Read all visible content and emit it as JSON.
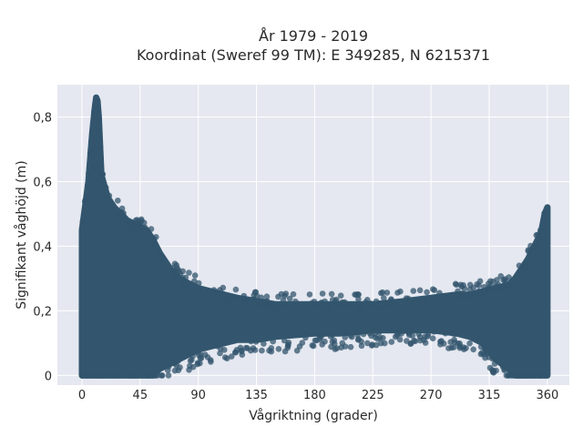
{
  "chart_data": {
    "type": "scatter",
    "title_line1": "År 1979 - 2019",
    "title_line2": "Koordinat (Sweref 99 TM): E 349285, N 6215371",
    "xlabel": "Vågriktning (grader)",
    "ylabel": "Signifikant våghöjd (m)",
    "xlim": [
      -19,
      377
    ],
    "ylim": [
      -0.03,
      0.9
    ],
    "xticks": [
      0,
      45,
      90,
      135,
      180,
      225,
      270,
      315,
      360
    ],
    "yticks": [
      0,
      0.2,
      0.4,
      0.6,
      0.8
    ],
    "ytick_labels": [
      "0",
      "0,2",
      "0,4",
      "0,6",
      "0,8"
    ],
    "grid": true,
    "marker_color": "#33566e",
    "plot_bg": "#e5e8f0",
    "density_envelope": {
      "x": [
        0,
        5,
        8,
        10,
        11,
        12,
        13,
        15,
        20,
        25,
        30,
        35,
        40,
        45,
        50,
        55,
        60,
        65,
        70,
        75,
        80,
        85,
        90,
        100,
        110,
        120,
        135,
        150,
        180,
        200,
        225,
        250,
        270,
        290,
        300,
        310,
        320,
        330,
        335,
        340,
        345,
        350,
        355,
        358,
        360
      ],
      "y_min": [
        0,
        0,
        0,
        0,
        0,
        0,
        0,
        0,
        0,
        0,
        0,
        0,
        0,
        0,
        0,
        0,
        0.02,
        0.03,
        0.04,
        0.05,
        0.06,
        0.07,
        0.08,
        0.09,
        0.1,
        0.11,
        0.11,
        0.12,
        0.13,
        0.13,
        0.14,
        0.14,
        0.14,
        0.13,
        0.12,
        0.1,
        0.05,
        0.02,
        0,
        0,
        0,
        0,
        0,
        0,
        0
      ],
      "y_max": [
        0.45,
        0.6,
        0.75,
        0.83,
        0.86,
        0.85,
        0.8,
        0.62,
        0.55,
        0.52,
        0.5,
        0.48,
        0.47,
        0.46,
        0.45,
        0.42,
        0.38,
        0.35,
        0.32,
        0.3,
        0.29,
        0.28,
        0.27,
        0.26,
        0.25,
        0.24,
        0.23,
        0.22,
        0.22,
        0.22,
        0.22,
        0.23,
        0.24,
        0.25,
        0.25,
        0.26,
        0.27,
        0.28,
        0.3,
        0.33,
        0.36,
        0.4,
        0.44,
        0.5,
        0.52
      ]
    }
  }
}
